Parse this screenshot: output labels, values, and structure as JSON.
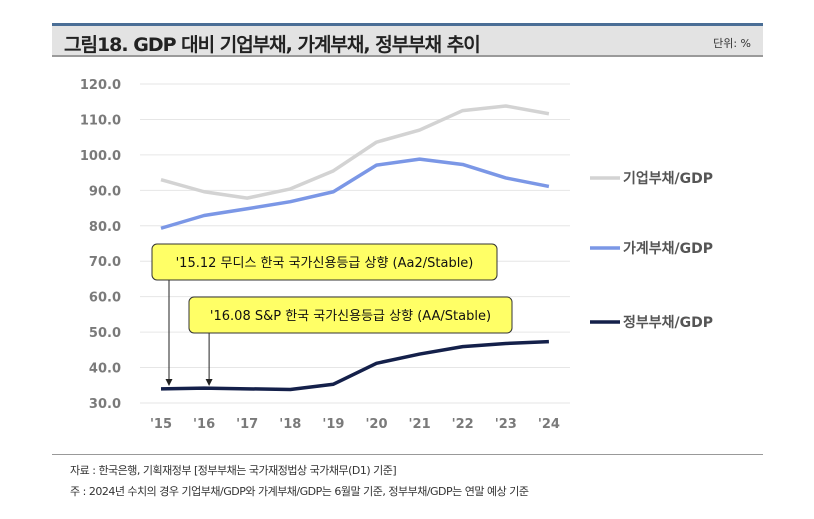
{
  "header": {
    "title": "그림18. GDP 대비 기업부채, 가계부채, 정부부채 추이",
    "unit": "단위: %"
  },
  "chart_data": {
    "type": "line",
    "categories": [
      "'15",
      "'16",
      "'17",
      "'18",
      "'19",
      "'20",
      "'21",
      "'22",
      "'23",
      "'24"
    ],
    "ylim": [
      30,
      120
    ],
    "yticks": [
      "30.0",
      "40.0",
      "50.0",
      "60.0",
      "70.0",
      "80.0",
      "90.0",
      "100.0",
      "110.0",
      "120.0"
    ],
    "grid": true,
    "legend_placement": "right",
    "series": [
      {
        "name": "기업부채/GDP",
        "color": "#d3d3d3",
        "values": [
          93.0,
          89.6,
          87.8,
          90.4,
          95.5,
          103.6,
          107.0,
          112.5,
          113.8,
          111.6
        ]
      },
      {
        "name": "가계부채/GDP",
        "color": "#7b97e6",
        "values": [
          79.3,
          82.9,
          84.8,
          86.8,
          89.6,
          97.1,
          98.8,
          97.3,
          93.5,
          91.1
        ]
      },
      {
        "name": "정부부채/GDP",
        "color": "#14204a",
        "values": [
          34.0,
          34.2,
          34.0,
          33.8,
          35.3,
          41.2,
          43.8,
          45.9,
          46.8,
          47.3
        ]
      }
    ],
    "annotations": [
      {
        "text": "'15.12 무디스 한국 국가신용등급 상향 (Aa2/Stable)",
        "x": "'15",
        "fill": "#ffff66"
      },
      {
        "text": "'16.08 S&P 한국 국가신용등급 상향 (AA/Stable)",
        "x": "'16",
        "fill": "#ffff66"
      }
    ]
  },
  "footer": {
    "source": "자료 : 한국은행, 기획재정부  [정부부채는 국가재정법상 국가채무(D1) 기준]",
    "note": "주 : 2024년 수치의 경우 기업부채/GDP와 가계부채/GDP는 6월말 기준, 정부부채/GDP는 연말 예상 기준"
  }
}
